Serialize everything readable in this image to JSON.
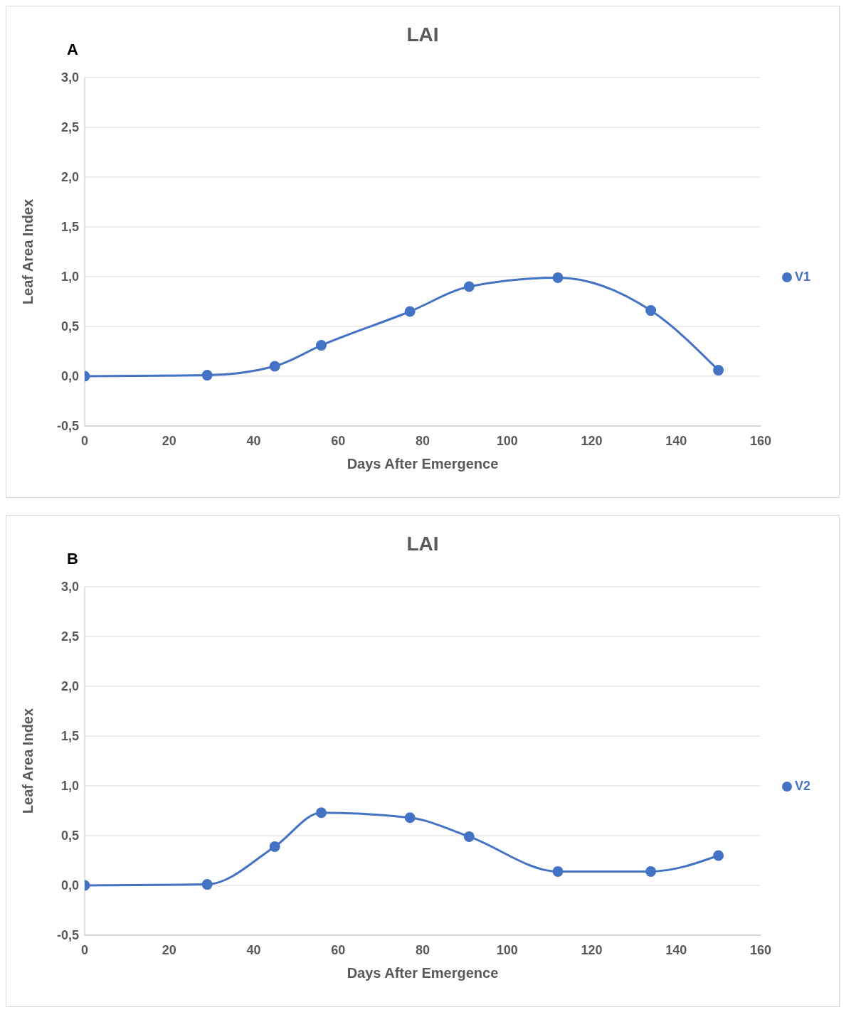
{
  "chart_data": [
    {
      "type": "line",
      "title": "LAI",
      "annotations": [
        "A"
      ],
      "xlabel": "Days After Emergence",
      "ylabel": "Leaf Area Index",
      "xlim": [
        0,
        160
      ],
      "xticks": [
        0,
        20,
        40,
        60,
        80,
        100,
        120,
        140,
        160
      ],
      "ylim": [
        -0.5,
        3
      ],
      "yticks": [
        {
          "value": -0.5,
          "label": "-0,5"
        },
        {
          "value": 0,
          "label": "0,0"
        },
        {
          "value": 0.5,
          "label": "0,5"
        },
        {
          "value": 1,
          "label": "1,0"
        },
        {
          "value": 1.5,
          "label": "1,5"
        },
        {
          "value": 2,
          "label": "2,0"
        },
        {
          "value": 2.5,
          "label": "2,5"
        },
        {
          "value": 3,
          "label": "3,0"
        }
      ],
      "grid": "y",
      "legend": "right",
      "marker": "circle",
      "x": [
        0,
        29,
        45,
        56,
        77,
        91,
        112,
        134,
        150
      ],
      "series": [
        {
          "name": "V1",
          "color": "#4472c4",
          "values": [
            0,
            0.01,
            0.1,
            0.31,
            0.65,
            0.9,
            0.99,
            0.66,
            0.06
          ]
        }
      ]
    },
    {
      "type": "line",
      "title": "LAI",
      "annotations": [
        "B"
      ],
      "xlabel": "Days After Emergence",
      "ylabel": "Leaf Area Index",
      "xlim": [
        0,
        160
      ],
      "xticks": [
        0,
        20,
        40,
        60,
        80,
        100,
        120,
        140,
        160
      ],
      "ylim": [
        -0.5,
        3
      ],
      "yticks": [
        {
          "value": -0.5,
          "label": "-0,5"
        },
        {
          "value": 0,
          "label": "0,0"
        },
        {
          "value": 0.5,
          "label": "0,5"
        },
        {
          "value": 1,
          "label": "1,0"
        },
        {
          "value": 1.5,
          "label": "1,5"
        },
        {
          "value": 2,
          "label": "2,0"
        },
        {
          "value": 2.5,
          "label": "2,5"
        },
        {
          "value": 3,
          "label": "3,0"
        }
      ],
      "grid": "y",
      "legend": "right",
      "marker": "circle",
      "x": [
        0,
        29,
        45,
        56,
        77,
        91,
        112,
        134,
        150
      ],
      "series": [
        {
          "name": "V2",
          "color": "#4472c4",
          "values": [
            0,
            0.01,
            0.39,
            0.73,
            0.68,
            0.49,
            0.14,
            0.14,
            0.3
          ]
        }
      ]
    }
  ]
}
